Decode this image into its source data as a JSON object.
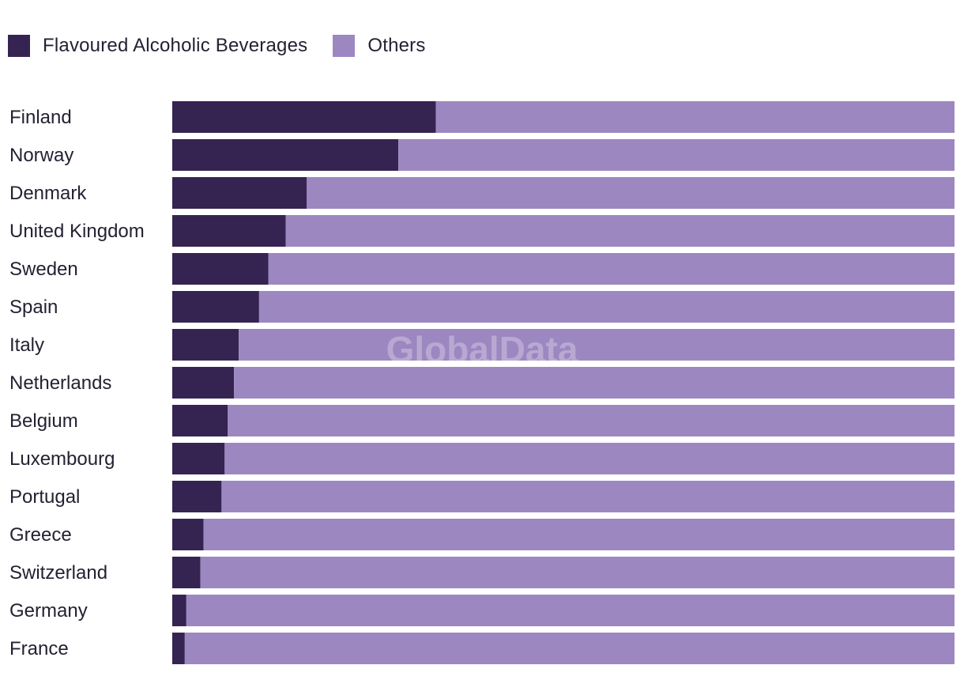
{
  "legend": {
    "series_1_label": "Flavoured Alcoholic Beverages",
    "series_2_label": "Others"
  },
  "watermark": "GlobalData",
  "colors": {
    "series_1": "#352452",
    "series_2": "#9d87c1"
  },
  "chart_data": {
    "type": "bar",
    "orientation": "horizontal",
    "stacked": true,
    "percent": true,
    "title": "",
    "xlabel": "",
    "ylabel": "",
    "xlim": [
      0,
      100
    ],
    "grid": false,
    "legend_position": "top-left",
    "categories": [
      "Finland",
      "Norway",
      "Denmark",
      "United Kingdom",
      "Sweden",
      "Spain",
      "Italy",
      "Netherlands",
      "Belgium",
      "Luxembourg",
      "Portugal",
      "Greece",
      "Switzerland",
      "Germany",
      "France"
    ],
    "series": [
      {
        "name": "Flavoured Alcoholic Beverages",
        "values": [
          33.7,
          28.9,
          17.2,
          14.5,
          12.3,
          11.1,
          8.5,
          7.9,
          7.1,
          6.7,
          6.3,
          4.0,
          3.6,
          1.8,
          1.6
        ]
      },
      {
        "name": "Others",
        "values": [
          66.3,
          71.1,
          82.8,
          85.5,
          87.7,
          88.9,
          91.5,
          92.1,
          92.9,
          93.3,
          93.7,
          96.0,
          96.4,
          98.2,
          98.4
        ]
      }
    ]
  }
}
